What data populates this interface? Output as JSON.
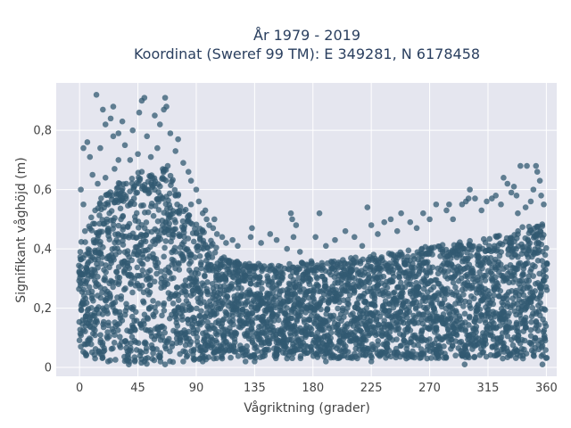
{
  "chart_data": {
    "type": "scatter",
    "title_lines": [
      "År 1979 - 2019",
      "Koordinat (Sweref 99 TM): E 349281, N 6178458"
    ],
    "xlabel": "Vågriktning (grader)",
    "ylabel": "Signifikant våghöjd (m)",
    "xlim": [
      -18,
      368
    ],
    "ylim": [
      -0.03,
      0.96
    ],
    "x_ticks": [
      0,
      45,
      90,
      135,
      180,
      225,
      270,
      315,
      360
    ],
    "x_tick_labels": [
      "0",
      "45",
      "90",
      "135",
      "180",
      "225",
      "270",
      "315",
      "360"
    ],
    "y_ticks": [
      0,
      0.2,
      0.4,
      0.6,
      0.8
    ],
    "y_tick_labels": [
      "0",
      "0,2",
      "0,4",
      "0,6",
      "0,8"
    ],
    "grid": true,
    "legend": "none",
    "colors": {
      "marker": "#325a72",
      "plot_background": "#e5e6ef",
      "grid": "#ffffff",
      "paper": "#ffffff"
    },
    "series": [
      {
        "points": [
          [
            13,
            0.92
          ],
          [
            50,
            0.91
          ],
          [
            66,
            0.91
          ],
          [
            48,
            0.9
          ],
          [
            26,
            0.88
          ],
          [
            18,
            0.87
          ],
          [
            65,
            0.87
          ],
          [
            67,
            0.88
          ],
          [
            46,
            0.86
          ],
          [
            58,
            0.85
          ],
          [
            24,
            0.84
          ],
          [
            33,
            0.83
          ],
          [
            20,
            0.82
          ],
          [
            41,
            0.8
          ],
          [
            62,
            0.82
          ],
          [
            70,
            0.79
          ],
          [
            26,
            0.78
          ],
          [
            30,
            0.79
          ],
          [
            52,
            0.78
          ],
          [
            76,
            0.77
          ],
          [
            6,
            0.76
          ],
          [
            35,
            0.75
          ],
          [
            16,
            0.74
          ],
          [
            3,
            0.74
          ],
          [
            60,
            0.74
          ],
          [
            45,
            0.72
          ],
          [
            8,
            0.71
          ],
          [
            30,
            0.7
          ],
          [
            80,
            0.69
          ],
          [
            74,
            0.73
          ],
          [
            55,
            0.71
          ],
          [
            39,
            0.7
          ],
          [
            68,
            0.68
          ],
          [
            84,
            0.66
          ],
          [
            10,
            0.65
          ],
          [
            27,
            0.67
          ],
          [
            86,
            0.63
          ],
          [
            20,
            0.64
          ],
          [
            48,
            0.66
          ],
          [
            1,
            0.6
          ],
          [
            64,
            0.64
          ],
          [
            90,
            0.6
          ],
          [
            36,
            0.62
          ],
          [
            14,
            0.62
          ],
          [
            76,
            0.58
          ],
          [
            92,
            0.56
          ],
          [
            52,
            0.6
          ],
          [
            3,
            0.55
          ],
          [
            95,
            0.52
          ],
          [
            98,
            0.5
          ],
          [
            100,
            0.48
          ],
          [
            86,
            0.55
          ],
          [
            25,
            0.58
          ],
          [
            42,
            0.57
          ],
          [
            12,
            0.53
          ],
          [
            97,
            0.53
          ],
          [
            103,
            0.47
          ],
          [
            106,
            0.45
          ],
          [
            110,
            0.44
          ],
          [
            104,
            0.5
          ],
          [
            113,
            0.42
          ],
          [
            118,
            0.43
          ],
          [
            122,
            0.41
          ],
          [
            132,
            0.44
          ],
          [
            133,
            0.47
          ],
          [
            140,
            0.42
          ],
          [
            147,
            0.45
          ],
          [
            152,
            0.43
          ],
          [
            160,
            0.4
          ],
          [
            165,
            0.44
          ],
          [
            167,
            0.48
          ],
          [
            164,
            0.5
          ],
          [
            163,
            0.52
          ],
          [
            170,
            0.39
          ],
          [
            182,
            0.44
          ],
          [
            185,
            0.52
          ],
          [
            190,
            0.41
          ],
          [
            197,
            0.43
          ],
          [
            205,
            0.46
          ],
          [
            212,
            0.44
          ],
          [
            218,
            0.41
          ],
          [
            222,
            0.54
          ],
          [
            225,
            0.48
          ],
          [
            230,
            0.45
          ],
          [
            235,
            0.49
          ],
          [
            240,
            0.5
          ],
          [
            245,
            0.46
          ],
          [
            248,
            0.52
          ],
          [
            255,
            0.49
          ],
          [
            260,
            0.47
          ],
          [
            265,
            0.52
          ],
          [
            270,
            0.5
          ],
          [
            275,
            0.55
          ],
          [
            283,
            0.53
          ],
          [
            285,
            0.55
          ],
          [
            288,
            0.5
          ],
          [
            295,
            0.55
          ],
          [
            298,
            0.56
          ],
          [
            300,
            0.57
          ],
          [
            301,
            0.6
          ],
          [
            305,
            0.57
          ],
          [
            310,
            0.53
          ],
          [
            314,
            0.56
          ],
          [
            318,
            0.57
          ],
          [
            321,
            0.58
          ],
          [
            325,
            0.55
          ],
          [
            327,
            0.64
          ],
          [
            330,
            0.62
          ],
          [
            333,
            0.59
          ],
          [
            335,
            0.61
          ],
          [
            337,
            0.58
          ],
          [
            340,
            0.68
          ],
          [
            345,
            0.68
          ],
          [
            352,
            0.68
          ],
          [
            353,
            0.66
          ],
          [
            355,
            0.63
          ],
          [
            350,
            0.6
          ],
          [
            348,
            0.56
          ],
          [
            356,
            0.58
          ],
          [
            344,
            0.54
          ],
          [
            338,
            0.52
          ],
          [
            358,
            0.55
          ],
          [
            1,
            0.07
          ],
          [
            5,
            0.04
          ],
          [
            12,
            0.03
          ],
          [
            22,
            0.02
          ],
          [
            38,
            0.01
          ],
          [
            50,
            0.02
          ],
          [
            66,
            0.01
          ],
          [
            80,
            0.02
          ],
          [
            95,
            0.02
          ],
          [
            110,
            0.03
          ],
          [
            128,
            0.02
          ],
          [
            135,
            0.02
          ],
          [
            160,
            0.03
          ],
          [
            190,
            0.02
          ],
          [
            225,
            0.02
          ],
          [
            252,
            0.03
          ],
          [
            268,
            0.03
          ],
          [
            290,
            0.04
          ],
          [
            297,
            0.01
          ],
          [
            320,
            0.04
          ],
          [
            342,
            0.03
          ],
          [
            357,
            0.01
          ]
        ]
      }
    ],
    "dense_band": [
      {
        "x": 0,
        "y_lo": 0.05,
        "y_hi": 0.42
      },
      {
        "x": 5,
        "y_lo": 0.04,
        "y_hi": 0.47
      },
      {
        "x": 10,
        "y_lo": 0.03,
        "y_hi": 0.52
      },
      {
        "x": 15,
        "y_lo": 0.03,
        "y_hi": 0.56
      },
      {
        "x": 20,
        "y_lo": 0.02,
        "y_hi": 0.6
      },
      {
        "x": 25,
        "y_lo": 0.02,
        "y_hi": 0.62
      },
      {
        "x": 30,
        "y_lo": 0.02,
        "y_hi": 0.63
      },
      {
        "x": 35,
        "y_lo": 0.02,
        "y_hi": 0.64
      },
      {
        "x": 40,
        "y_lo": 0.01,
        "y_hi": 0.65
      },
      {
        "x": 45,
        "y_lo": 0.01,
        "y_hi": 0.66
      },
      {
        "x": 50,
        "y_lo": 0.01,
        "y_hi": 0.66
      },
      {
        "x": 55,
        "y_lo": 0.01,
        "y_hi": 0.67
      },
      {
        "x": 60,
        "y_lo": 0.01,
        "y_hi": 0.68
      },
      {
        "x": 65,
        "y_lo": 0.01,
        "y_hi": 0.68
      },
      {
        "x": 70,
        "y_lo": 0.01,
        "y_hi": 0.65
      },
      {
        "x": 75,
        "y_lo": 0.02,
        "y_hi": 0.6
      },
      {
        "x": 80,
        "y_lo": 0.02,
        "y_hi": 0.56
      },
      {
        "x": 85,
        "y_lo": 0.02,
        "y_hi": 0.52
      },
      {
        "x": 90,
        "y_lo": 0.02,
        "y_hi": 0.49
      },
      {
        "x": 95,
        "y_lo": 0.02,
        "y_hi": 0.47
      },
      {
        "x": 100,
        "y_lo": 0.03,
        "y_hi": 0.44
      },
      {
        "x": 105,
        "y_lo": 0.03,
        "y_hi": 0.41
      },
      {
        "x": 110,
        "y_lo": 0.03,
        "y_hi": 0.38
      },
      {
        "x": 120,
        "y_lo": 0.03,
        "y_hi": 0.36
      },
      {
        "x": 135,
        "y_lo": 0.03,
        "y_hi": 0.35
      },
      {
        "x": 150,
        "y_lo": 0.03,
        "y_hi": 0.35
      },
      {
        "x": 165,
        "y_lo": 0.03,
        "y_hi": 0.35
      },
      {
        "x": 180,
        "y_lo": 0.03,
        "y_hi": 0.36
      },
      {
        "x": 195,
        "y_lo": 0.03,
        "y_hi": 0.36
      },
      {
        "x": 210,
        "y_lo": 0.03,
        "y_hi": 0.37
      },
      {
        "x": 225,
        "y_lo": 0.03,
        "y_hi": 0.38
      },
      {
        "x": 240,
        "y_lo": 0.03,
        "y_hi": 0.39
      },
      {
        "x": 255,
        "y_lo": 0.03,
        "y_hi": 0.4
      },
      {
        "x": 270,
        "y_lo": 0.03,
        "y_hi": 0.41
      },
      {
        "x": 285,
        "y_lo": 0.03,
        "y_hi": 0.42
      },
      {
        "x": 300,
        "y_lo": 0.03,
        "y_hi": 0.43
      },
      {
        "x": 315,
        "y_lo": 0.03,
        "y_hi": 0.44
      },
      {
        "x": 330,
        "y_lo": 0.03,
        "y_hi": 0.46
      },
      {
        "x": 345,
        "y_lo": 0.03,
        "y_hi": 0.48
      },
      {
        "x": 360,
        "y_lo": 0.03,
        "y_hi": 0.49
      }
    ]
  }
}
